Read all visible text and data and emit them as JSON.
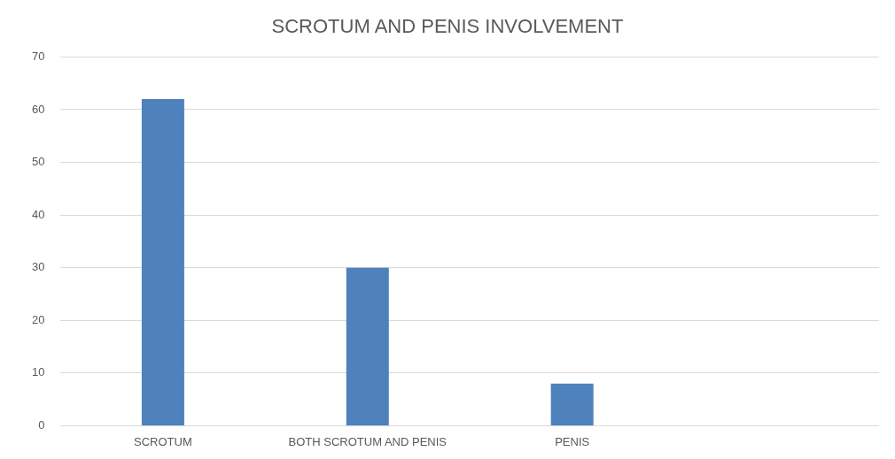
{
  "chart_data": {
    "type": "bar",
    "title": "SCROTUM AND PENIS INVOLVEMENT",
    "categories": [
      "SCROTUM",
      "BOTH SCROTUM AND PENIS",
      "PENIS",
      null
    ],
    "values": [
      62,
      30,
      8,
      null
    ],
    "color": "#4f81bd",
    "ylim": [
      0,
      70
    ],
    "yticks": [
      0,
      10,
      20,
      30,
      40,
      50,
      60,
      70
    ],
    "grid": "y"
  }
}
